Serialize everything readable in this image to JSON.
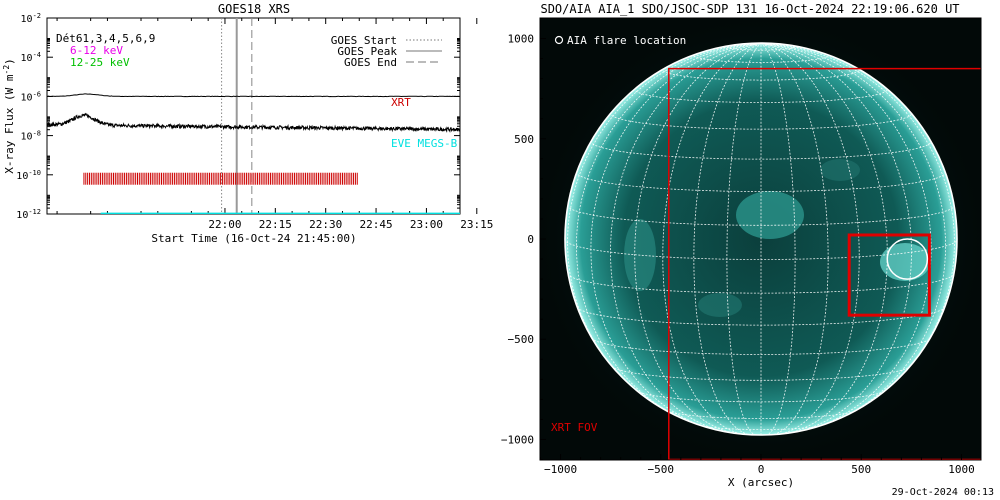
{
  "chart_data": [
    {
      "type": "line",
      "title": "GOES18 XRS",
      "xlabel": "Start Time (16-Oct-24 21:45:00)",
      "ylabel_main": "X-ray Flux (W m",
      "ylabel_sup": "-2",
      "ylabel_close": ")",
      "x_ticks": [
        "22:00",
        "22:15",
        "22:30",
        "22:45",
        "23:00",
        "23:15"
      ],
      "y_ticks": [
        {
          "base": "10",
          "exp": "-2"
        },
        {
          "base": "10",
          "exp": "-4"
        },
        {
          "base": "10",
          "exp": "-6"
        },
        {
          "base": "10",
          "exp": "-8"
        },
        {
          "base": "10",
          "exp": "-10"
        },
        {
          "base": "10",
          "exp": "-12"
        }
      ],
      "xlim_minutes": [
        -38,
        85
      ],
      "ylim_log10": [
        -12,
        -2
      ],
      "legend_left": [
        {
          "label": "Dét61,3,4,5,6,9",
          "color": "#000000"
        },
        {
          "label": "6-12 keV",
          "color": "#e800e8"
        },
        {
          "label": "12-25 keV",
          "color": "#00c000"
        }
      ],
      "legend_right": [
        {
          "label": "GOES Start",
          "style": "dotted"
        },
        {
          "label": "GOES Peak",
          "style": "solid"
        },
        {
          "label": "GOES End",
          "style": "dashed"
        }
      ],
      "event_markers_minutes": {
        "start": 14,
        "peak": 18.5,
        "end": 23
      },
      "series": [
        {
          "name": "long channel",
          "color": "#000000",
          "level_log10": -6.0
        },
        {
          "name": "short channel",
          "color": "#000000",
          "level_log10": -7.5
        }
      ],
      "xrt_label": "XRT",
      "xrt_color": "#cc0000",
      "xrt_obs_range_minutes": [
        -27,
        54.5
      ],
      "xrt_obs_level_log10": -10.2,
      "eve_label": "EVE MEGS-B",
      "eve_color": "#00e0e0",
      "eve_level_log10": -11.98
    },
    {
      "type": "image",
      "title": "SDO/AIA AIA_1 SDO/JSOC-SDP 131 16-Oct-2024 22:19:06.620 UT",
      "xlabel": "X (arcsec)",
      "x_ticks": [
        -1000,
        -500,
        0,
        500,
        1000
      ],
      "y_ticks": [
        1000,
        500,
        0,
        -500,
        -1000
      ],
      "xlim": [
        -1100,
        1100
      ],
      "ylim": [
        -1100,
        1100
      ],
      "solar_radius_arcsec": 980,
      "legend_label": "AIA flare location",
      "xrt_fov_label": "XRT FOV",
      "xrt_fov_box": {
        "x0": -460,
        "x1": 1100,
        "y0": -1100,
        "y1": 850
      },
      "roi_box": {
        "x0": 440,
        "x1": 840,
        "y0": -380,
        "y1": 20
      },
      "flare_location": {
        "x": 730,
        "y": -100,
        "r": 100
      },
      "grid_spacing_deg": 10,
      "xrt_color": "#e00000"
    }
  ],
  "footer_timestamp": "29-Oct-2024 00:13"
}
